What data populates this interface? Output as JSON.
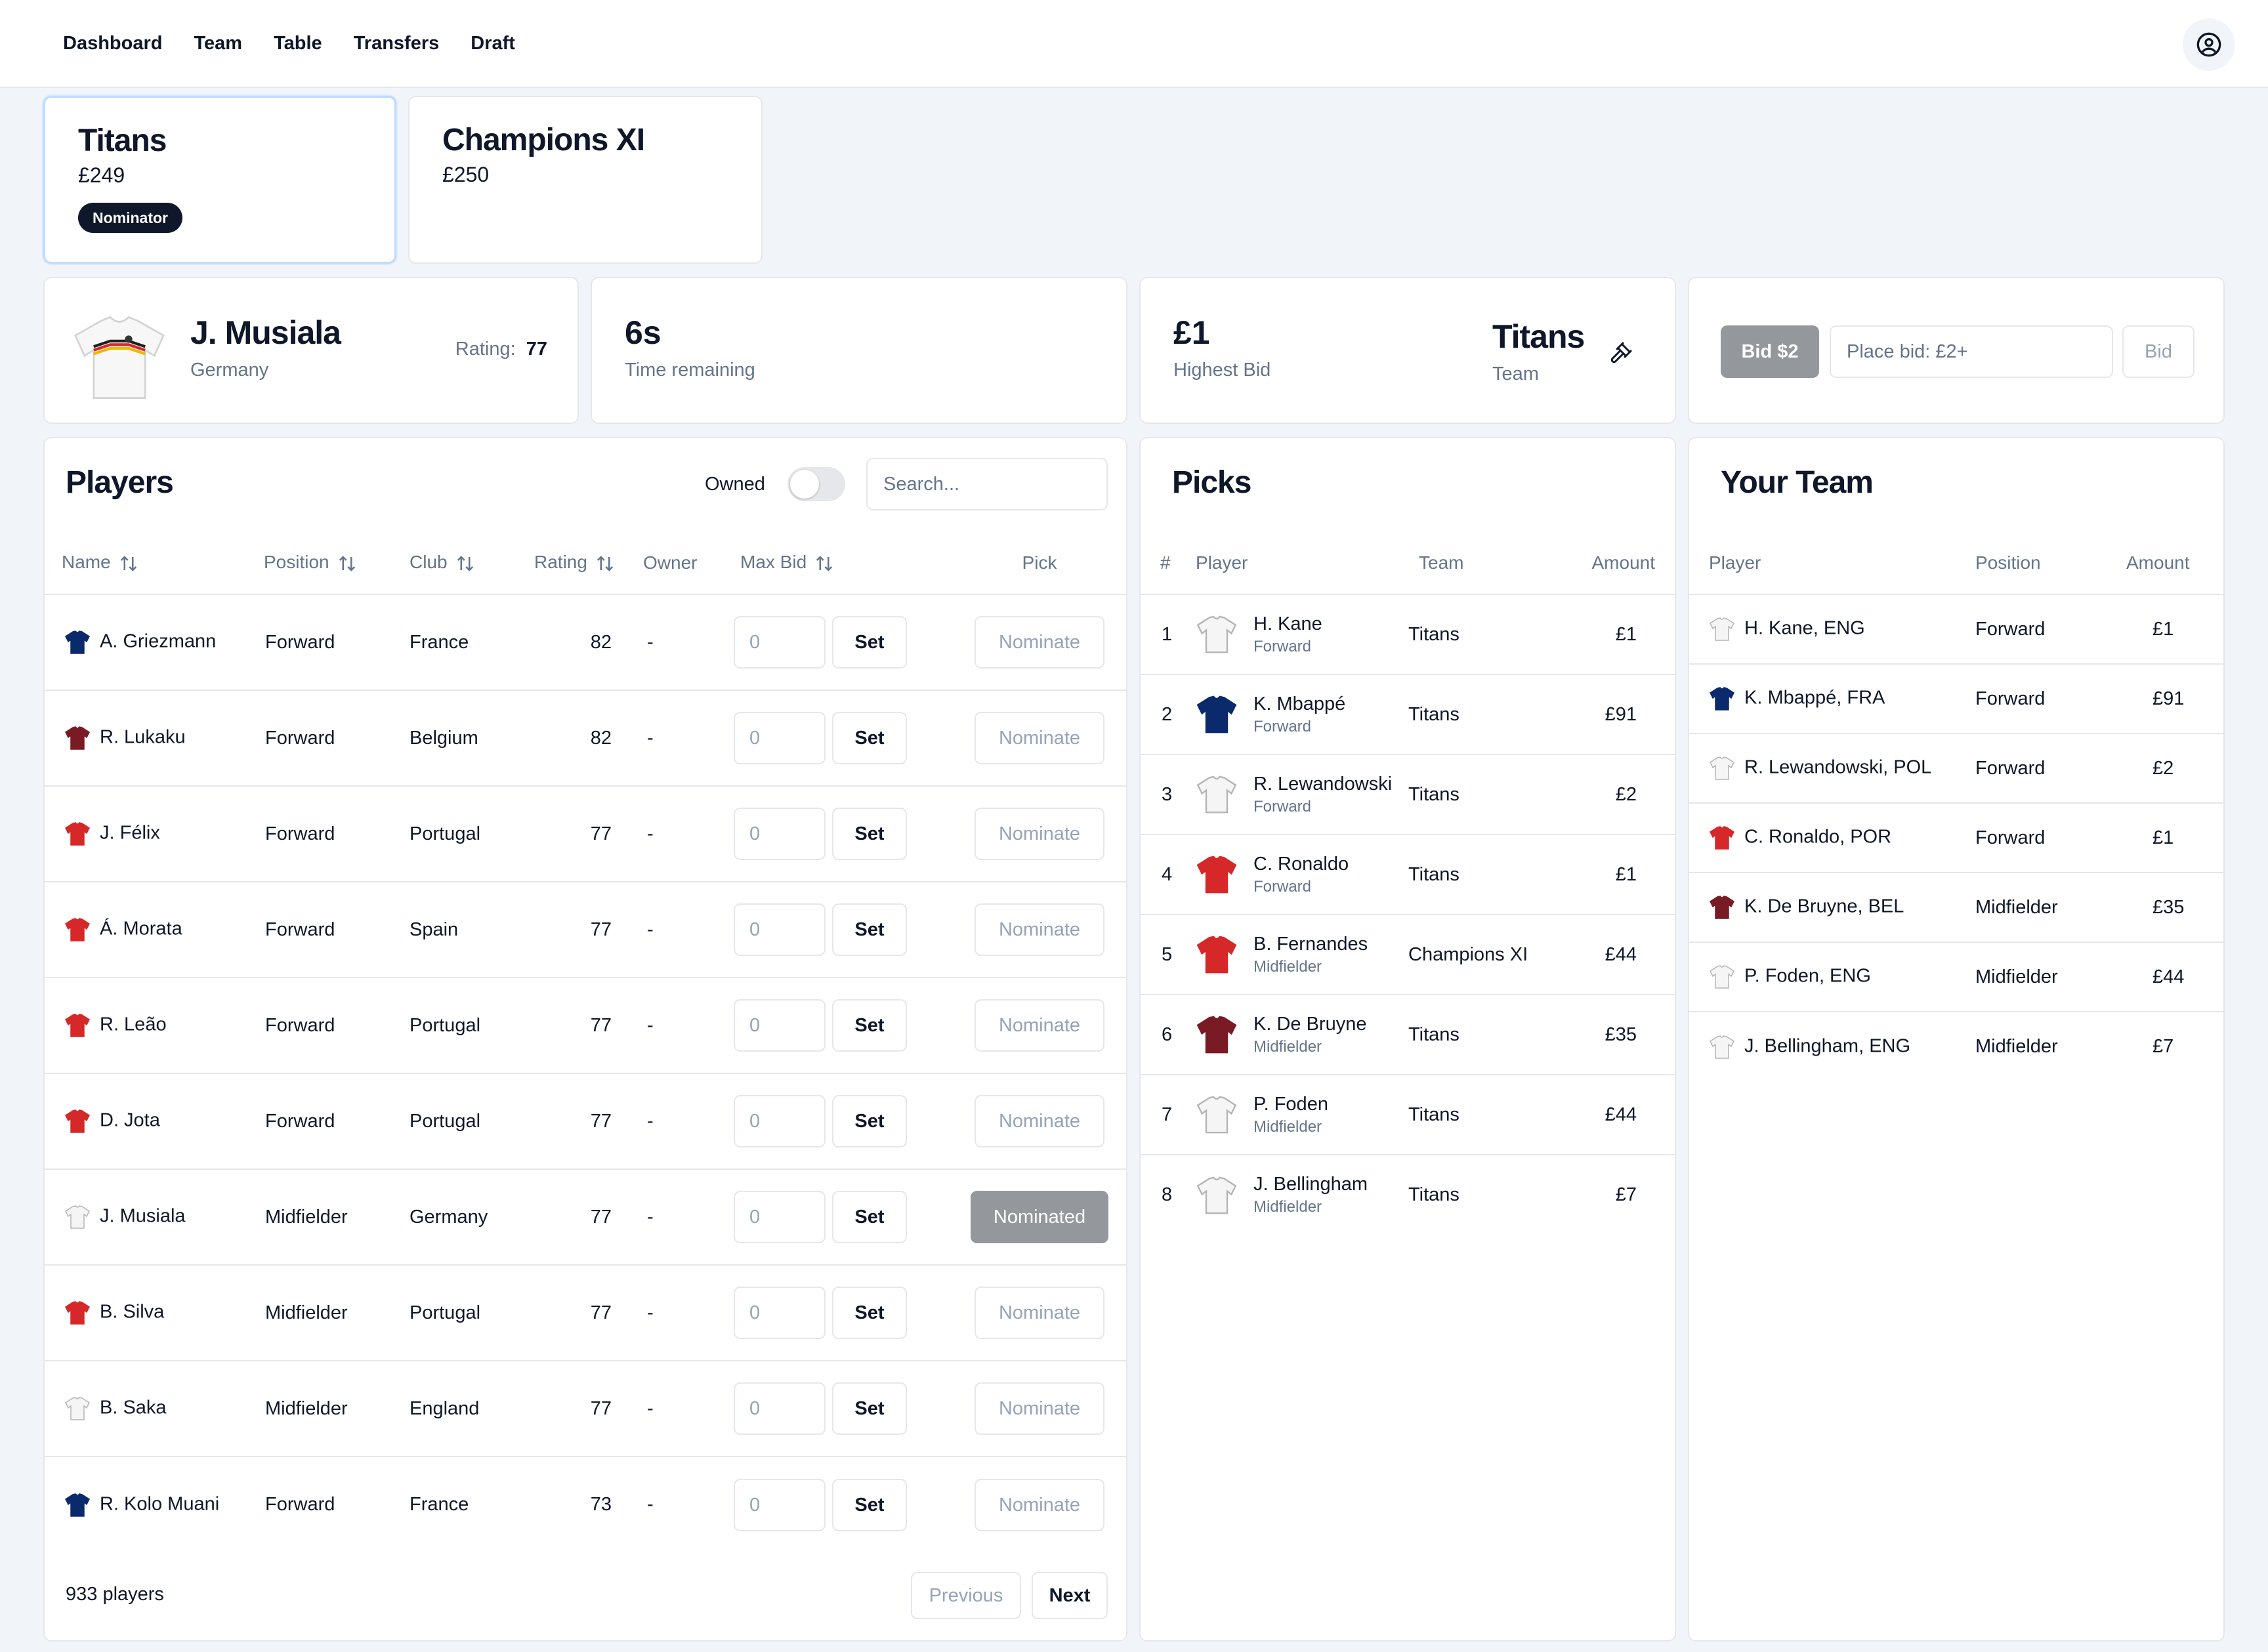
{
  "nav": {
    "items": [
      "Dashboard",
      "Team",
      "Table",
      "Transfers",
      "Draft"
    ]
  },
  "teams": [
    {
      "name": "Titans",
      "budget": "£249",
      "badge": "Nominator",
      "active": true
    },
    {
      "name": "Champions XI",
      "budget": "£250",
      "active": false
    }
  ],
  "auction": {
    "player_name": "J. Musiala",
    "player_country": "Germany",
    "rating_label": "Rating:",
    "rating_value": "77",
    "time_value": "6s",
    "time_label": "Time remaining",
    "highest_bid_value": "£1",
    "highest_bid_label": "Highest Bid",
    "leading_team": "Titans",
    "leading_team_label": "Team",
    "bid_button": "Bid $2",
    "bid_placeholder": "Place bid: £2+",
    "bid_submit": "Bid"
  },
  "players_panel": {
    "title": "Players",
    "owned_label": "Owned",
    "owned_on": false,
    "search_placeholder": "Search...",
    "columns": [
      "Name",
      "Position",
      "Club",
      "Rating",
      "Owner",
      "Max Bid",
      "Pick"
    ],
    "rows": [
      {
        "name": "A. Griezmann",
        "position": "Forward",
        "club": "France",
        "rating": "82",
        "owner": "-",
        "max_bid": "0",
        "set": "Set",
        "pick": "Nominate",
        "kit": "#0b2a6b"
      },
      {
        "name": "R. Lukaku",
        "position": "Forward",
        "club": "Belgium",
        "rating": "82",
        "owner": "-",
        "max_bid": "0",
        "set": "Set",
        "pick": "Nominate",
        "kit": "#7a1a24"
      },
      {
        "name": "J. Félix",
        "position": "Forward",
        "club": "Portugal",
        "rating": "77",
        "owner": "-",
        "max_bid": "0",
        "set": "Set",
        "pick": "Nominate",
        "kit": "#d62828"
      },
      {
        "name": "Á. Morata",
        "position": "Forward",
        "club": "Spain",
        "rating": "77",
        "owner": "-",
        "max_bid": "0",
        "set": "Set",
        "pick": "Nominate",
        "kit": "#d62828"
      },
      {
        "name": "R. Leão",
        "position": "Forward",
        "club": "Portugal",
        "rating": "77",
        "owner": "-",
        "max_bid": "0",
        "set": "Set",
        "pick": "Nominate",
        "kit": "#d62828"
      },
      {
        "name": "D. Jota",
        "position": "Forward",
        "club": "Portugal",
        "rating": "77",
        "owner": "-",
        "max_bid": "0",
        "set": "Set",
        "pick": "Nominate",
        "kit": "#d62828"
      },
      {
        "name": "J. Musiala",
        "position": "Midfielder",
        "club": "Germany",
        "rating": "77",
        "owner": "-",
        "max_bid": "0",
        "set": "Set",
        "pick": "Nominated",
        "kit": "#f5f5f5",
        "nominated": true
      },
      {
        "name": "B. Silva",
        "position": "Midfielder",
        "club": "Portugal",
        "rating": "77",
        "owner": "-",
        "max_bid": "0",
        "set": "Set",
        "pick": "Nominate",
        "kit": "#d62828"
      },
      {
        "name": "B. Saka",
        "position": "Midfielder",
        "club": "England",
        "rating": "77",
        "owner": "-",
        "max_bid": "0",
        "set": "Set",
        "pick": "Nominate",
        "kit": "#f5f5f5"
      },
      {
        "name": "R. Kolo Muani",
        "position": "Forward",
        "club": "France",
        "rating": "73",
        "owner": "-",
        "max_bid": "0",
        "set": "Set",
        "pick": "Nominate",
        "kit": "#0b2a6b"
      }
    ],
    "count": "933 players",
    "prev": "Previous",
    "next": "Next"
  },
  "picks_panel": {
    "title": "Picks",
    "columns": [
      "#",
      "Player",
      "Team",
      "Amount"
    ],
    "rows": [
      {
        "num": "1",
        "name": "H. Kane",
        "position": "Forward",
        "team": "Titans",
        "amount": "£1",
        "kit": "#f5f5f5"
      },
      {
        "num": "2",
        "name": "K. Mbappé",
        "position": "Forward",
        "team": "Titans",
        "amount": "£91",
        "kit": "#0b2a6b"
      },
      {
        "num": "3",
        "name": "R. Lewandowski",
        "position": "Forward",
        "team": "Titans",
        "amount": "£2",
        "kit": "#f5f5f5"
      },
      {
        "num": "4",
        "name": "C. Ronaldo",
        "position": "Forward",
        "team": "Titans",
        "amount": "£1",
        "kit": "#d62828"
      },
      {
        "num": "5",
        "name": "B. Fernandes",
        "position": "Midfielder",
        "team": "Champions XI",
        "amount": "£44",
        "kit": "#d62828"
      },
      {
        "num": "6",
        "name": "K. De Bruyne",
        "position": "Midfielder",
        "team": "Titans",
        "amount": "£35",
        "kit": "#7a1a24"
      },
      {
        "num": "7",
        "name": "P. Foden",
        "position": "Midfielder",
        "team": "Titans",
        "amount": "£44",
        "kit": "#f5f5f5"
      },
      {
        "num": "8",
        "name": "J. Bellingham",
        "position": "Midfielder",
        "team": "Titans",
        "amount": "£7",
        "kit": "#f5f5f5"
      }
    ]
  },
  "your_team_panel": {
    "title": "Your Team",
    "columns": [
      "Player",
      "Position",
      "Amount"
    ],
    "rows": [
      {
        "name": "H. Kane, ENG",
        "position": "Forward",
        "amount": "£1",
        "kit": "#f5f5f5"
      },
      {
        "name": "K. Mbappé, FRA",
        "position": "Forward",
        "amount": "£91",
        "kit": "#0b2a6b"
      },
      {
        "name": "R. Lewandowski, POL",
        "position": "Forward",
        "amount": "£2",
        "kit": "#f5f5f5"
      },
      {
        "name": "C. Ronaldo, POR",
        "position": "Forward",
        "amount": "£1",
        "kit": "#d62828"
      },
      {
        "name": "K. De Bruyne, BEL",
        "position": "Midfielder",
        "amount": "£35",
        "kit": "#7a1a24"
      },
      {
        "name": "P. Foden, ENG",
        "position": "Midfielder",
        "amount": "£44",
        "kit": "#f5f5f5"
      },
      {
        "name": "J. Bellingham, ENG",
        "position": "Midfielder",
        "amount": "£7",
        "kit": "#f5f5f5"
      }
    ]
  }
}
